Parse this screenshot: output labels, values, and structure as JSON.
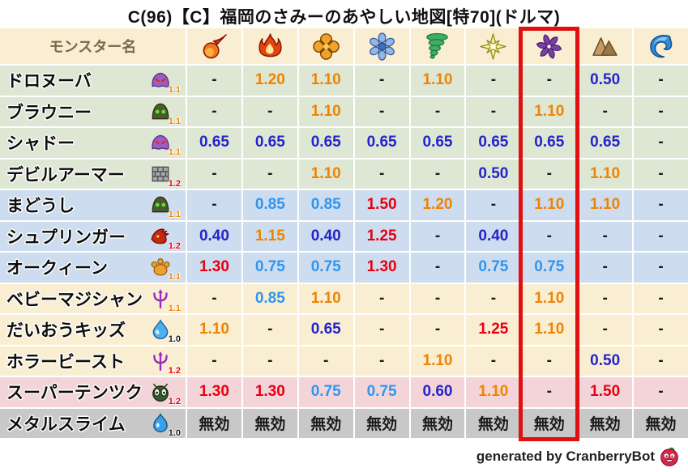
{
  "title": "C(96)【C】福岡のさみーのあやしい地図[特70](ドルマ)",
  "header": {
    "name_col_label": "モンスター名",
    "element_icons": [
      "fireball-icon",
      "flame-icon",
      "explosion-icon",
      "snowflake-icon",
      "tornado-icon",
      "light-star-icon",
      "dark-pinwheel-icon",
      "mountain-icon",
      "wave-icon"
    ]
  },
  "rows": [
    {
      "name": "ドロヌーバ",
      "icon": "purple-blob-icon",
      "multiplier": "1.1",
      "multiplier_color": "orange",
      "group": "green",
      "values": [
        "-",
        "1.20",
        "1.10",
        "-",
        "1.10",
        "-",
        "-",
        "0.50",
        "-"
      ]
    },
    {
      "name": "ブラウニー",
      "icon": "green-hood-icon",
      "multiplier": "1.1",
      "multiplier_color": "orange",
      "group": "green",
      "values": [
        "-",
        "-",
        "1.10",
        "-",
        "-",
        "-",
        "1.10",
        "-",
        "-"
      ]
    },
    {
      "name": "シャドー",
      "icon": "purple-blob-icon",
      "multiplier": "1.1",
      "multiplier_color": "orange",
      "group": "green",
      "values": [
        "0.65",
        "0.65",
        "0.65",
        "0.65",
        "0.65",
        "0.65",
        "0.65",
        "0.65",
        "-"
      ]
    },
    {
      "name": "デビルアーマー",
      "icon": "brick-wall-icon",
      "multiplier": "1.2",
      "multiplier_color": "red",
      "group": "green",
      "values": [
        "-",
        "-",
        "1.10",
        "-",
        "-",
        "0.50",
        "-",
        "1.10",
        "-"
      ]
    },
    {
      "name": "まどうし",
      "icon": "green-hood-icon",
      "multiplier": "1.1",
      "multiplier_color": "orange",
      "group": "blue",
      "values": [
        "-",
        "0.85",
        "0.85",
        "1.50",
        "1.20",
        "-",
        "1.10",
        "1.10",
        "-"
      ]
    },
    {
      "name": "シュプリンガー",
      "icon": "dragon-icon",
      "multiplier": "1.2",
      "multiplier_color": "red",
      "group": "blue",
      "values": [
        "0.40",
        "1.15",
        "0.40",
        "1.25",
        "-",
        "0.40",
        "-",
        "-",
        "-"
      ]
    },
    {
      "name": "オークィーン",
      "icon": "paw-icon",
      "multiplier": "1.1",
      "multiplier_color": "orange",
      "group": "blue",
      "values": [
        "1.30",
        "0.75",
        "0.75",
        "1.30",
        "-",
        "0.75",
        "0.75",
        "-",
        "-"
      ]
    },
    {
      "name": "ベビーマジシャン",
      "icon": "trident-icon",
      "multiplier": "1.1",
      "multiplier_color": "orange",
      "group": "cream",
      "values": [
        "-",
        "0.85",
        "1.10",
        "-",
        "-",
        "-",
        "1.10",
        "-",
        "-"
      ]
    },
    {
      "name": "だいおうキッズ",
      "icon": "water-drop-icon",
      "multiplier": "1.0",
      "multiplier_color": "black",
      "group": "cream",
      "values": [
        "1.10",
        "-",
        "0.65",
        "-",
        "-",
        "1.25",
        "1.10",
        "-",
        "-"
      ]
    },
    {
      "name": "ホラービースト",
      "icon": "trident-icon",
      "multiplier": "1.2",
      "multiplier_color": "red",
      "group": "cream",
      "values": [
        "-",
        "-",
        "-",
        "-",
        "1.10",
        "-",
        "-",
        "0.50",
        "-"
      ]
    },
    {
      "name": "スーパーテンツク",
      "icon": "bug-icon",
      "multiplier": "1.2",
      "multiplier_color": "red",
      "group": "pink",
      "values": [
        "1.30",
        "1.30",
        "0.75",
        "0.75",
        "0.60",
        "1.10",
        "-",
        "1.50",
        "-"
      ]
    },
    {
      "name": "メタルスライム",
      "icon": "slime-icon",
      "multiplier": "1.0",
      "multiplier_color": "black",
      "group": "gray",
      "values": [
        "無効",
        "無効",
        "無効",
        "無効",
        "無効",
        "無効",
        "無効",
        "無効",
        "無効"
      ]
    }
  ],
  "highlight": {
    "column_index": 6,
    "target_icon": "dark-pinwheel-icon",
    "color": "#e01010"
  },
  "footer": {
    "credit": "generated by CranberryBot",
    "icon": "cranberry-icon"
  },
  "colors": {
    "orange": "#f08300",
    "red": "#e60012",
    "light_blue": "#2f96f0",
    "dark_blue": "#2424cc",
    "neutral": "#1a1a1a",
    "highlight_box": "#e01010",
    "header_bg": "#faeed2",
    "header_text": "#7a6847",
    "groups": {
      "green": "#dde7d3",
      "blue": "#cddcee",
      "cream": "#faeed2",
      "pink": "#f3d5d9",
      "gray": "#c8c8c8"
    },
    "mult": {
      "orange": "#f08300",
      "red": "#e60012",
      "black": "#1a1a1a"
    }
  }
}
